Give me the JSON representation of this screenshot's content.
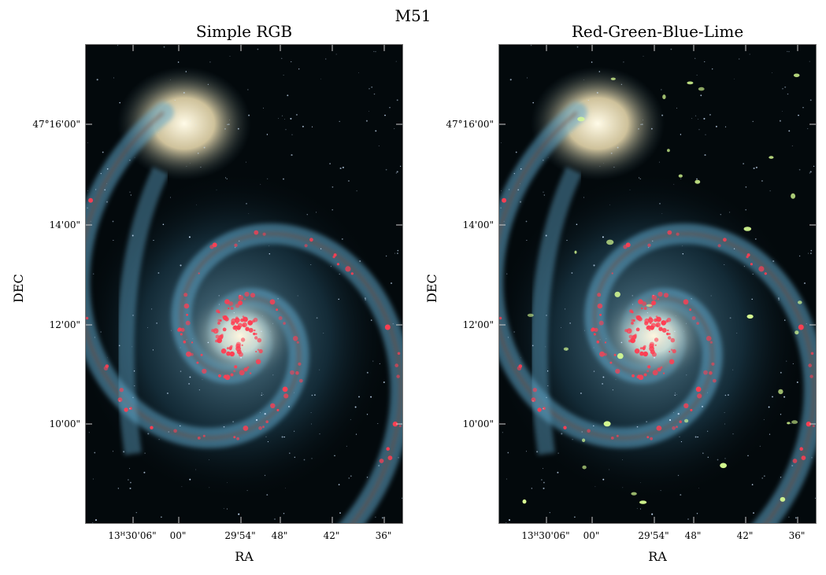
{
  "figure": {
    "title": "M51"
  },
  "panels": [
    {
      "id": "left",
      "title": "Simple RGB",
      "xlabel": "RA",
      "ylabel": "DEC",
      "yticks": [
        "47°16'00\"",
        "14'00\"",
        "12'00\"",
        "10'00\""
      ],
      "xticks": [
        "13ᴴ30'06\"",
        "00\"",
        "29'54\"",
        "48\"",
        "42\"",
        "36\""
      ]
    },
    {
      "id": "right",
      "title": "Red-Green-Blue-Lime",
      "xlabel": "RA",
      "ylabel": "DEC",
      "yticks": [
        "47°16'00\"",
        "14'00\"",
        "12'00\"",
        "10'00\""
      ],
      "xticks": [
        "13ᴴ30'06\"",
        "00\"",
        "29'54\"",
        "48\"",
        "42\"",
        "36\""
      ]
    }
  ],
  "image": {
    "subject": "spiral-galaxy",
    "colors": {
      "bg": "#03090c",
      "arm": "#5fa5c8",
      "core": "#fff6df",
      "companion": "#f2e2b4",
      "hii": "#ff3e52",
      "dust": "#7a3f16",
      "lime": "#d9ff93"
    }
  }
}
